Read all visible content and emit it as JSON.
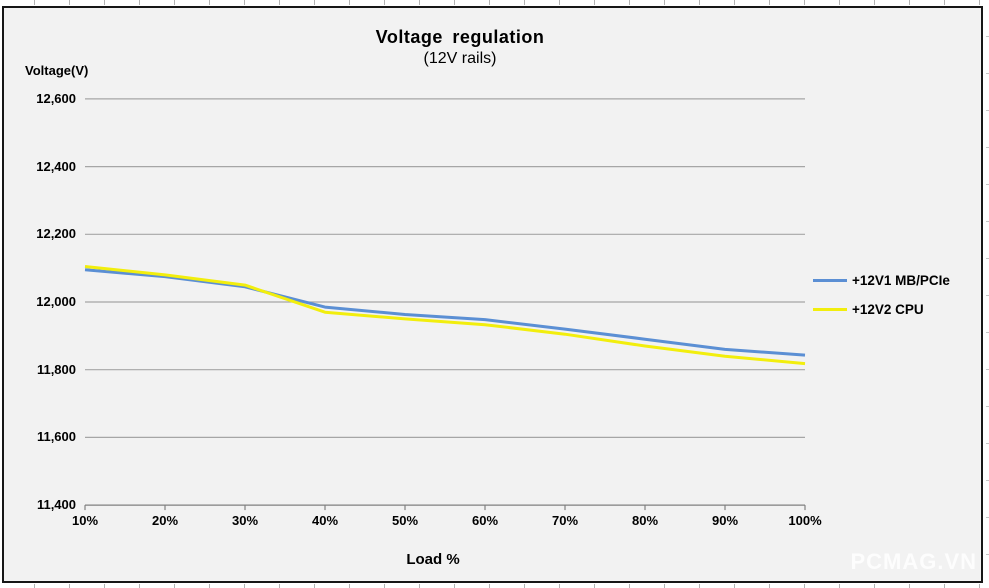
{
  "watermark": {
    "text": "PCMAG.VN"
  },
  "chart_data": {
    "type": "line",
    "title": "Voltage regulation",
    "subtitle": "(12V rails)",
    "xlabel": "Load %",
    "ylabel": "Voltage(V)",
    "categories": [
      "10%",
      "20%",
      "30%",
      "40%",
      "50%",
      "60%",
      "70%",
      "80%",
      "90%",
      "100%"
    ],
    "ylim": [
      11400,
      12600
    ],
    "y_tick_step": 200,
    "y_tick_labels": [
      "12,600",
      "12,400",
      "12,200",
      "12,000",
      "11,800",
      "11,600",
      "11,400"
    ],
    "grid": true,
    "legend_position": "right",
    "panel_color": "#f2f2f2",
    "grid_color": "#a6a6a6",
    "axis_color": "#808080",
    "series": [
      {
        "name": "+12V1 MB/PCIe",
        "color": "#5b8fd4",
        "values": [
          12095,
          12075,
          12045,
          11985,
          11963,
          11948,
          11920,
          11890,
          11860,
          11843
        ]
      },
      {
        "name": "+12V2 CPU",
        "color": "#f2ee0d",
        "values": [
          12105,
          12080,
          12050,
          11970,
          11950,
          11933,
          11905,
          11870,
          11840,
          11818
        ]
      }
    ]
  }
}
